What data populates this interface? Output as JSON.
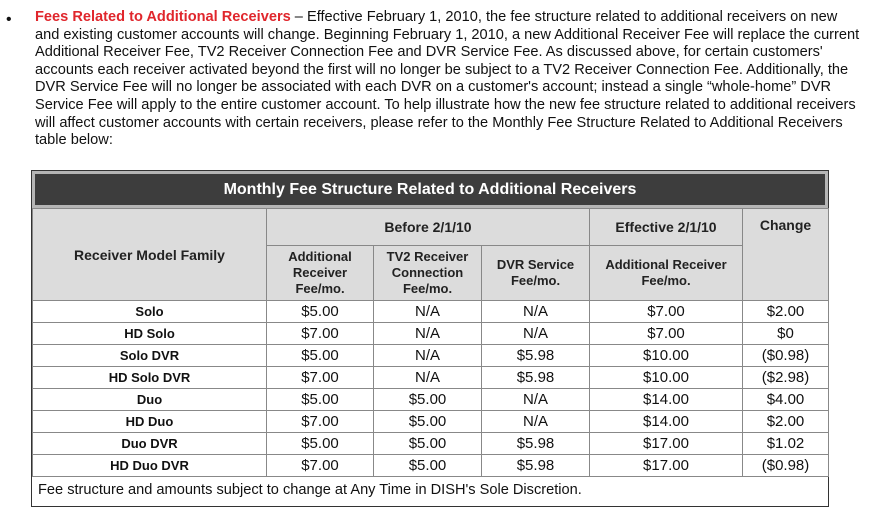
{
  "bullet": "•",
  "intro": {
    "highlight": "Fees Related to Additional Receivers",
    "text": " – Effective February 1, 2010, the fee structure related to additional receivers on new and existing customer accounts will change. Beginning February 1, 2010, a new Additional Receiver Fee will replace the current Additional Receiver Fee, TV2 Receiver Connection Fee and DVR Service Fee. As discussed above, for certain customers' accounts each receiver activated beyond the first will no longer be subject to a TV2 Receiver Connection Fee.  Additionally, the DVR Service Fee will no longer be associated with each DVR on a customer's account; instead a single “whole-home” DVR Service Fee will apply to the entire customer account. To help illustrate how the new fee structure related to additional receivers will affect customer accounts with certain receivers, please refer to the Monthly Fee Structure Related to Additional Receivers table below:"
  },
  "table": {
    "title": "Monthly Fee Structure Related to Additional Receivers",
    "group_before": "Before 2/1/10",
    "group_effective": "Effective 2/1/10",
    "col_model": "Receiver Model Family",
    "col_change": "Change",
    "col_add_fee": "Additional Receiver Fee/mo.",
    "col_tv2": "TV2 Receiver Connection Fee/mo.",
    "col_dvr": "DVR Service Fee/mo.",
    "col_new_fee": "Additional Receiver Fee/mo.",
    "rows": [
      {
        "model": "Solo",
        "add": "$5.00",
        "tv2": "N/A",
        "dvr": "N/A",
        "new": "$7.00",
        "change": "$2.00"
      },
      {
        "model": "HD Solo",
        "add": "$7.00",
        "tv2": "N/A",
        "dvr": "N/A",
        "new": "$7.00",
        "change": "$0"
      },
      {
        "model": "Solo DVR",
        "add": "$5.00",
        "tv2": "N/A",
        "dvr": "$5.98",
        "new": "$10.00",
        "change": "($0.98)"
      },
      {
        "model": "HD Solo DVR",
        "add": "$7.00",
        "tv2": "N/A",
        "dvr": "$5.98",
        "new": "$10.00",
        "change": "($2.98)"
      },
      {
        "model": "Duo",
        "add": "$5.00",
        "tv2": "$5.00",
        "dvr": "N/A",
        "new": "$14.00",
        "change": "$4.00"
      },
      {
        "model": "HD Duo",
        "add": "$7.00",
        "tv2": "$5.00",
        "dvr": "N/A",
        "new": "$14.00",
        "change": "$2.00"
      },
      {
        "model": "Duo DVR",
        "add": "$5.00",
        "tv2": "$5.00",
        "dvr": "$5.98",
        "new": "$17.00",
        "change": "$1.02"
      },
      {
        "model": "HD Duo DVR",
        "add": "$7.00",
        "tv2": "$5.00",
        "dvr": "$5.98",
        "new": "$17.00",
        "change": "($0.98)"
      }
    ],
    "footer": "Fee structure and amounts subject to change at Any Time in DISH's Sole Discretion."
  }
}
